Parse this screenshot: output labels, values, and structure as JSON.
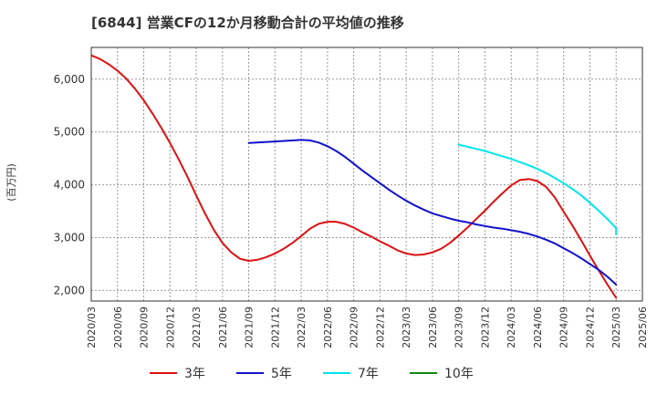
{
  "chart_data": {
    "type": "line",
    "title": "[6844]  営業CFの12か月移動合計の平均値の推移",
    "ylabel": "(百万円)",
    "xlabel": "",
    "ylim": [
      1800,
      6600
    ],
    "y_ticks": [
      2000,
      3000,
      4000,
      5000,
      6000
    ],
    "y_tick_labels": [
      "2,000",
      "3,000",
      "4,000",
      "5,000",
      "6,000"
    ],
    "x_tick_labels": [
      "2020/03",
      "2020/06",
      "2020/09",
      "2020/12",
      "2021/03",
      "2021/06",
      "2021/09",
      "2021/12",
      "2022/03",
      "2022/06",
      "2022/09",
      "2022/12",
      "2023/03",
      "2023/06",
      "2023/09",
      "2023/12",
      "2024/03",
      "2024/06",
      "2024/09",
      "2024/12",
      "2025/03",
      "2025/06"
    ],
    "grid": true,
    "legend_position": "bottom",
    "series": [
      {
        "name": "3年",
        "color": "#dd1111",
        "points": [
          [
            "2020/03",
            6450
          ],
          [
            "2020/04",
            6380
          ],
          [
            "2020/05",
            6280
          ],
          [
            "2020/06",
            6160
          ],
          [
            "2020/07",
            6010
          ],
          [
            "2020/08",
            5820
          ],
          [
            "2020/09",
            5600
          ],
          [
            "2020/10",
            5350
          ],
          [
            "2020/11",
            5080
          ],
          [
            "2020/12",
            4790
          ],
          [
            "2021/01",
            4480
          ],
          [
            "2021/02",
            4150
          ],
          [
            "2021/03",
            3800
          ],
          [
            "2021/04",
            3460
          ],
          [
            "2021/05",
            3150
          ],
          [
            "2021/06",
            2900
          ],
          [
            "2021/07",
            2720
          ],
          [
            "2021/08",
            2600
          ],
          [
            "2021/09",
            2560
          ],
          [
            "2021/10",
            2580
          ],
          [
            "2021/11",
            2630
          ],
          [
            "2021/12",
            2700
          ],
          [
            "2022/01",
            2790
          ],
          [
            "2022/02",
            2900
          ],
          [
            "2022/03",
            3030
          ],
          [
            "2022/04",
            3170
          ],
          [
            "2022/05",
            3260
          ],
          [
            "2022/06",
            3300
          ],
          [
            "2022/07",
            3300
          ],
          [
            "2022/08",
            3260
          ],
          [
            "2022/09",
            3190
          ],
          [
            "2022/10",
            3100
          ],
          [
            "2022/11",
            3020
          ],
          [
            "2022/12",
            2930
          ],
          [
            "2023/01",
            2850
          ],
          [
            "2023/02",
            2760
          ],
          [
            "2023/03",
            2700
          ],
          [
            "2023/04",
            2670
          ],
          [
            "2023/05",
            2680
          ],
          [
            "2023/06",
            2720
          ],
          [
            "2023/07",
            2790
          ],
          [
            "2023/08",
            2900
          ],
          [
            "2023/09",
            3040
          ],
          [
            "2023/10",
            3190
          ],
          [
            "2023/11",
            3350
          ],
          [
            "2023/12",
            3510
          ],
          [
            "2024/01",
            3680
          ],
          [
            "2024/02",
            3840
          ],
          [
            "2024/03",
            3990
          ],
          [
            "2024/04",
            4090
          ],
          [
            "2024/05",
            4110
          ],
          [
            "2024/06",
            4070
          ],
          [
            "2024/07",
            3960
          ],
          [
            "2024/08",
            3760
          ],
          [
            "2024/09",
            3490
          ],
          [
            "2024/10",
            3230
          ],
          [
            "2024/11",
            2950
          ],
          [
            "2024/12",
            2660
          ],
          [
            "2025/01",
            2380
          ],
          [
            "2025/02",
            2110
          ],
          [
            "2025/03",
            1860
          ]
        ]
      },
      {
        "name": "5年",
        "color": "#1111cc",
        "points": [
          [
            "2021/09",
            4790
          ],
          [
            "2021/12",
            4820
          ],
          [
            "2022/03",
            4850
          ],
          [
            "2022/04",
            4840
          ],
          [
            "2022/05",
            4800
          ],
          [
            "2022/06",
            4730
          ],
          [
            "2022/07",
            4640
          ],
          [
            "2022/08",
            4530
          ],
          [
            "2022/09",
            4400
          ],
          [
            "2022/10",
            4270
          ],
          [
            "2022/11",
            4150
          ],
          [
            "2022/12",
            4030
          ],
          [
            "2023/01",
            3910
          ],
          [
            "2023/02",
            3800
          ],
          [
            "2023/03",
            3700
          ],
          [
            "2023/04",
            3610
          ],
          [
            "2023/05",
            3530
          ],
          [
            "2023/06",
            3460
          ],
          [
            "2023/07",
            3410
          ],
          [
            "2023/08",
            3360
          ],
          [
            "2023/09",
            3320
          ],
          [
            "2023/10",
            3290
          ],
          [
            "2023/11",
            3250
          ],
          [
            "2023/12",
            3220
          ],
          [
            "2024/01",
            3190
          ],
          [
            "2024/02",
            3170
          ],
          [
            "2024/03",
            3140
          ],
          [
            "2024/04",
            3110
          ],
          [
            "2024/05",
            3070
          ],
          [
            "2024/06",
            3020
          ],
          [
            "2024/07",
            2960
          ],
          [
            "2024/08",
            2890
          ],
          [
            "2024/09",
            2800
          ],
          [
            "2024/10",
            2710
          ],
          [
            "2024/11",
            2610
          ],
          [
            "2024/12",
            2500
          ],
          [
            "2025/01",
            2390
          ],
          [
            "2025/02",
            2260
          ],
          [
            "2025/03",
            2110
          ]
        ]
      },
      {
        "name": "7年",
        "color": "#00e5ee",
        "points": [
          [
            "2023/09",
            4760
          ],
          [
            "2023/10",
            4720
          ],
          [
            "2023/11",
            4680
          ],
          [
            "2023/12",
            4640
          ],
          [
            "2024/01",
            4590
          ],
          [
            "2024/02",
            4540
          ],
          [
            "2024/03",
            4490
          ],
          [
            "2024/04",
            4430
          ],
          [
            "2024/05",
            4370
          ],
          [
            "2024/06",
            4300
          ],
          [
            "2024/07",
            4220
          ],
          [
            "2024/08",
            4130
          ],
          [
            "2024/09",
            4030
          ],
          [
            "2024/10",
            3920
          ],
          [
            "2024/11",
            3800
          ],
          [
            "2024/12",
            3660
          ],
          [
            "2025/01",
            3510
          ],
          [
            "2025/02",
            3350
          ],
          [
            "2025/03",
            3180
          ],
          [
            "2025/03",
            3060
          ]
        ]
      },
      {
        "name": "10年",
        "color": "#118811",
        "points": []
      }
    ]
  }
}
